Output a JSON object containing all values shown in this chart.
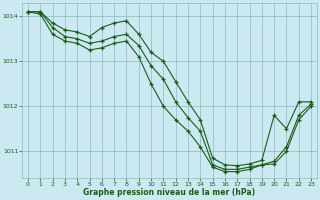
{
  "title": "Graphe pression niveau de la mer (hPa)",
  "bg_color": "#cce8f0",
  "line_color": "#1a5c1a",
  "grid_color": "#8bbcbc",
  "xlim": [
    -0.5,
    23.5
  ],
  "ylim": [
    1010.4,
    1014.3
  ],
  "yticks": [
    1011,
    1012,
    1013,
    1014
  ],
  "xticks": [
    0,
    1,
    2,
    3,
    4,
    5,
    6,
    7,
    8,
    9,
    10,
    11,
    12,
    13,
    14,
    15,
    16,
    17,
    18,
    19,
    20,
    21,
    22,
    23
  ],
  "line1": [
    1014.1,
    1014.1,
    1013.85,
    1013.7,
    1013.65,
    1013.55,
    1013.75,
    1013.85,
    1013.9,
    1013.6,
    1013.2,
    1013.0,
    1012.55,
    1012.1,
    1011.7,
    1010.85,
    1010.7,
    1010.68,
    1010.72,
    1010.8,
    1011.8,
    1011.5,
    1012.1,
    1012.1
  ],
  "line2": [
    1014.1,
    1014.1,
    1013.75,
    1013.55,
    1013.5,
    1013.4,
    1013.45,
    1013.55,
    1013.6,
    1013.35,
    1012.9,
    1012.6,
    1012.1,
    1011.75,
    1011.45,
    1010.7,
    1010.6,
    1010.6,
    1010.65,
    1010.7,
    1010.78,
    1011.1,
    1011.8,
    1012.05
  ],
  "line3": [
    1014.1,
    1014.05,
    1013.6,
    1013.45,
    1013.4,
    1013.25,
    1013.3,
    1013.4,
    1013.45,
    1013.1,
    1012.5,
    1012.0,
    1011.7,
    1011.45,
    1011.1,
    1010.65,
    1010.55,
    1010.55,
    1010.6,
    1010.7,
    1010.72,
    1011.0,
    1011.7,
    1012.0
  ]
}
